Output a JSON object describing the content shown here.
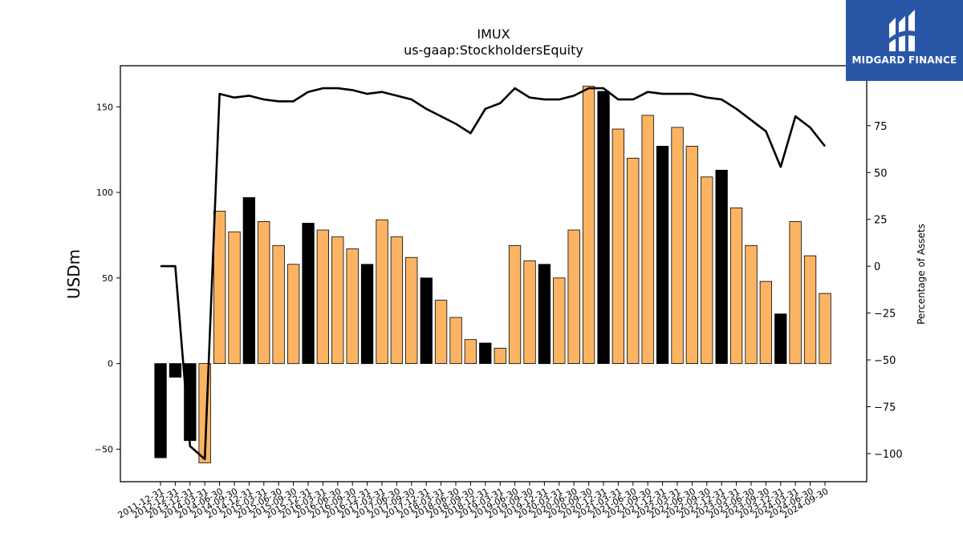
{
  "chart_data": {
    "type": "bar",
    "title": "IMUX",
    "subtitle": "us-gaap:StockholdersEquity",
    "ylabel": "USDm",
    "y2label": "Percentage of Assets",
    "ylim": [
      -69,
      174
    ],
    "y2lim": [
      -115,
      107
    ],
    "yticks": [
      -50,
      0,
      50,
      100,
      150
    ],
    "y2ticks": [
      -100,
      -75,
      -50,
      -25,
      0,
      25,
      50,
      75
    ],
    "y2tick_labels": [
      "−100",
      "−75",
      "−50",
      "−25",
      "0",
      "25",
      "50",
      "75"
    ],
    "ytick_labels": [
      "−50",
      "0",
      "50",
      "100",
      "150"
    ],
    "categories": [
      "2011-12-31",
      "2012-12-31",
      "2013-12-31",
      "2014-03-31",
      "2014-06-30",
      "2014-09-30",
      "2014-12-31",
      "2015-03-31",
      "2015-06-30",
      "2015-09-30",
      "2015-12-31",
      "2016-03-31",
      "2016-06-30",
      "2016-09-30",
      "2016-12-31",
      "2017-03-31",
      "2017-06-30",
      "2017-09-30",
      "2017-12-31",
      "2018-03-31",
      "2018-06-30",
      "2018-09-30",
      "2018-12-31",
      "2019-03-31",
      "2019-06-30",
      "2019-09-30",
      "2019-12-31",
      "2020-03-31",
      "2020-06-30",
      "2020-09-30",
      "2020-12-31",
      "2021-03-31",
      "2021-06-30",
      "2021-09-30",
      "2021-12-31",
      "2022-03-31",
      "2022-06-30",
      "2022-09-30",
      "2022-12-31",
      "2023-03-31",
      "2023-06-30",
      "2023-09-30",
      "2023-12-31",
      "2024-03-31",
      "2024-06-30",
      "2024-09-30"
    ],
    "series": [
      {
        "kind": "bar",
        "axis": "left",
        "values": [
          -55,
          -8,
          -45,
          -58,
          89,
          77,
          97,
          83,
          69,
          58,
          82,
          78,
          74,
          67,
          58,
          84,
          74,
          62,
          50,
          37,
          27,
          14,
          12,
          9,
          69,
          60,
          58,
          50,
          78,
          162,
          159,
          137,
          120,
          145,
          127,
          138,
          127,
          109,
          113,
          91,
          69,
          48,
          29,
          83,
          63,
          41
        ],
        "colors": [
          "#000000",
          "#000000",
          "#000000",
          "#fdb462",
          "#fdb462",
          "#fdb462",
          "#000000",
          "#fdb462",
          "#fdb462",
          "#fdb462",
          "#000000",
          "#fdb462",
          "#fdb462",
          "#fdb462",
          "#000000",
          "#fdb462",
          "#fdb462",
          "#fdb462",
          "#000000",
          "#fdb462",
          "#fdb462",
          "#fdb462",
          "#000000",
          "#fdb462",
          "#fdb462",
          "#fdb462",
          "#000000",
          "#fdb462",
          "#fdb462",
          "#fdb462",
          "#000000",
          "#fdb462",
          "#fdb462",
          "#fdb462",
          "#000000",
          "#fdb462",
          "#fdb462",
          "#fdb462",
          "#000000",
          "#fdb462",
          "#fdb462",
          "#fdb462",
          "#000000",
          "#fdb462",
          "#fdb462",
          "#fdb462"
        ]
      },
      {
        "kind": "line",
        "axis": "right",
        "values": [
          0,
          0,
          -96,
          -103,
          92,
          90,
          91,
          89,
          88,
          88,
          93,
          95,
          95,
          94,
          92,
          93,
          91,
          89,
          84,
          80,
          76,
          71,
          84,
          87,
          95,
          90,
          89,
          89,
          91,
          95,
          95,
          89,
          89,
          93,
          92,
          92,
          92,
          90,
          89,
          84,
          78,
          72,
          53,
          80,
          74,
          64
        ]
      }
    ],
    "grid": false,
    "legend": "none"
  },
  "logo": {
    "text": "MIDGARD FINANCE",
    "bg_color": "#2a56a8",
    "icon": "midgard-logo-icon"
  }
}
